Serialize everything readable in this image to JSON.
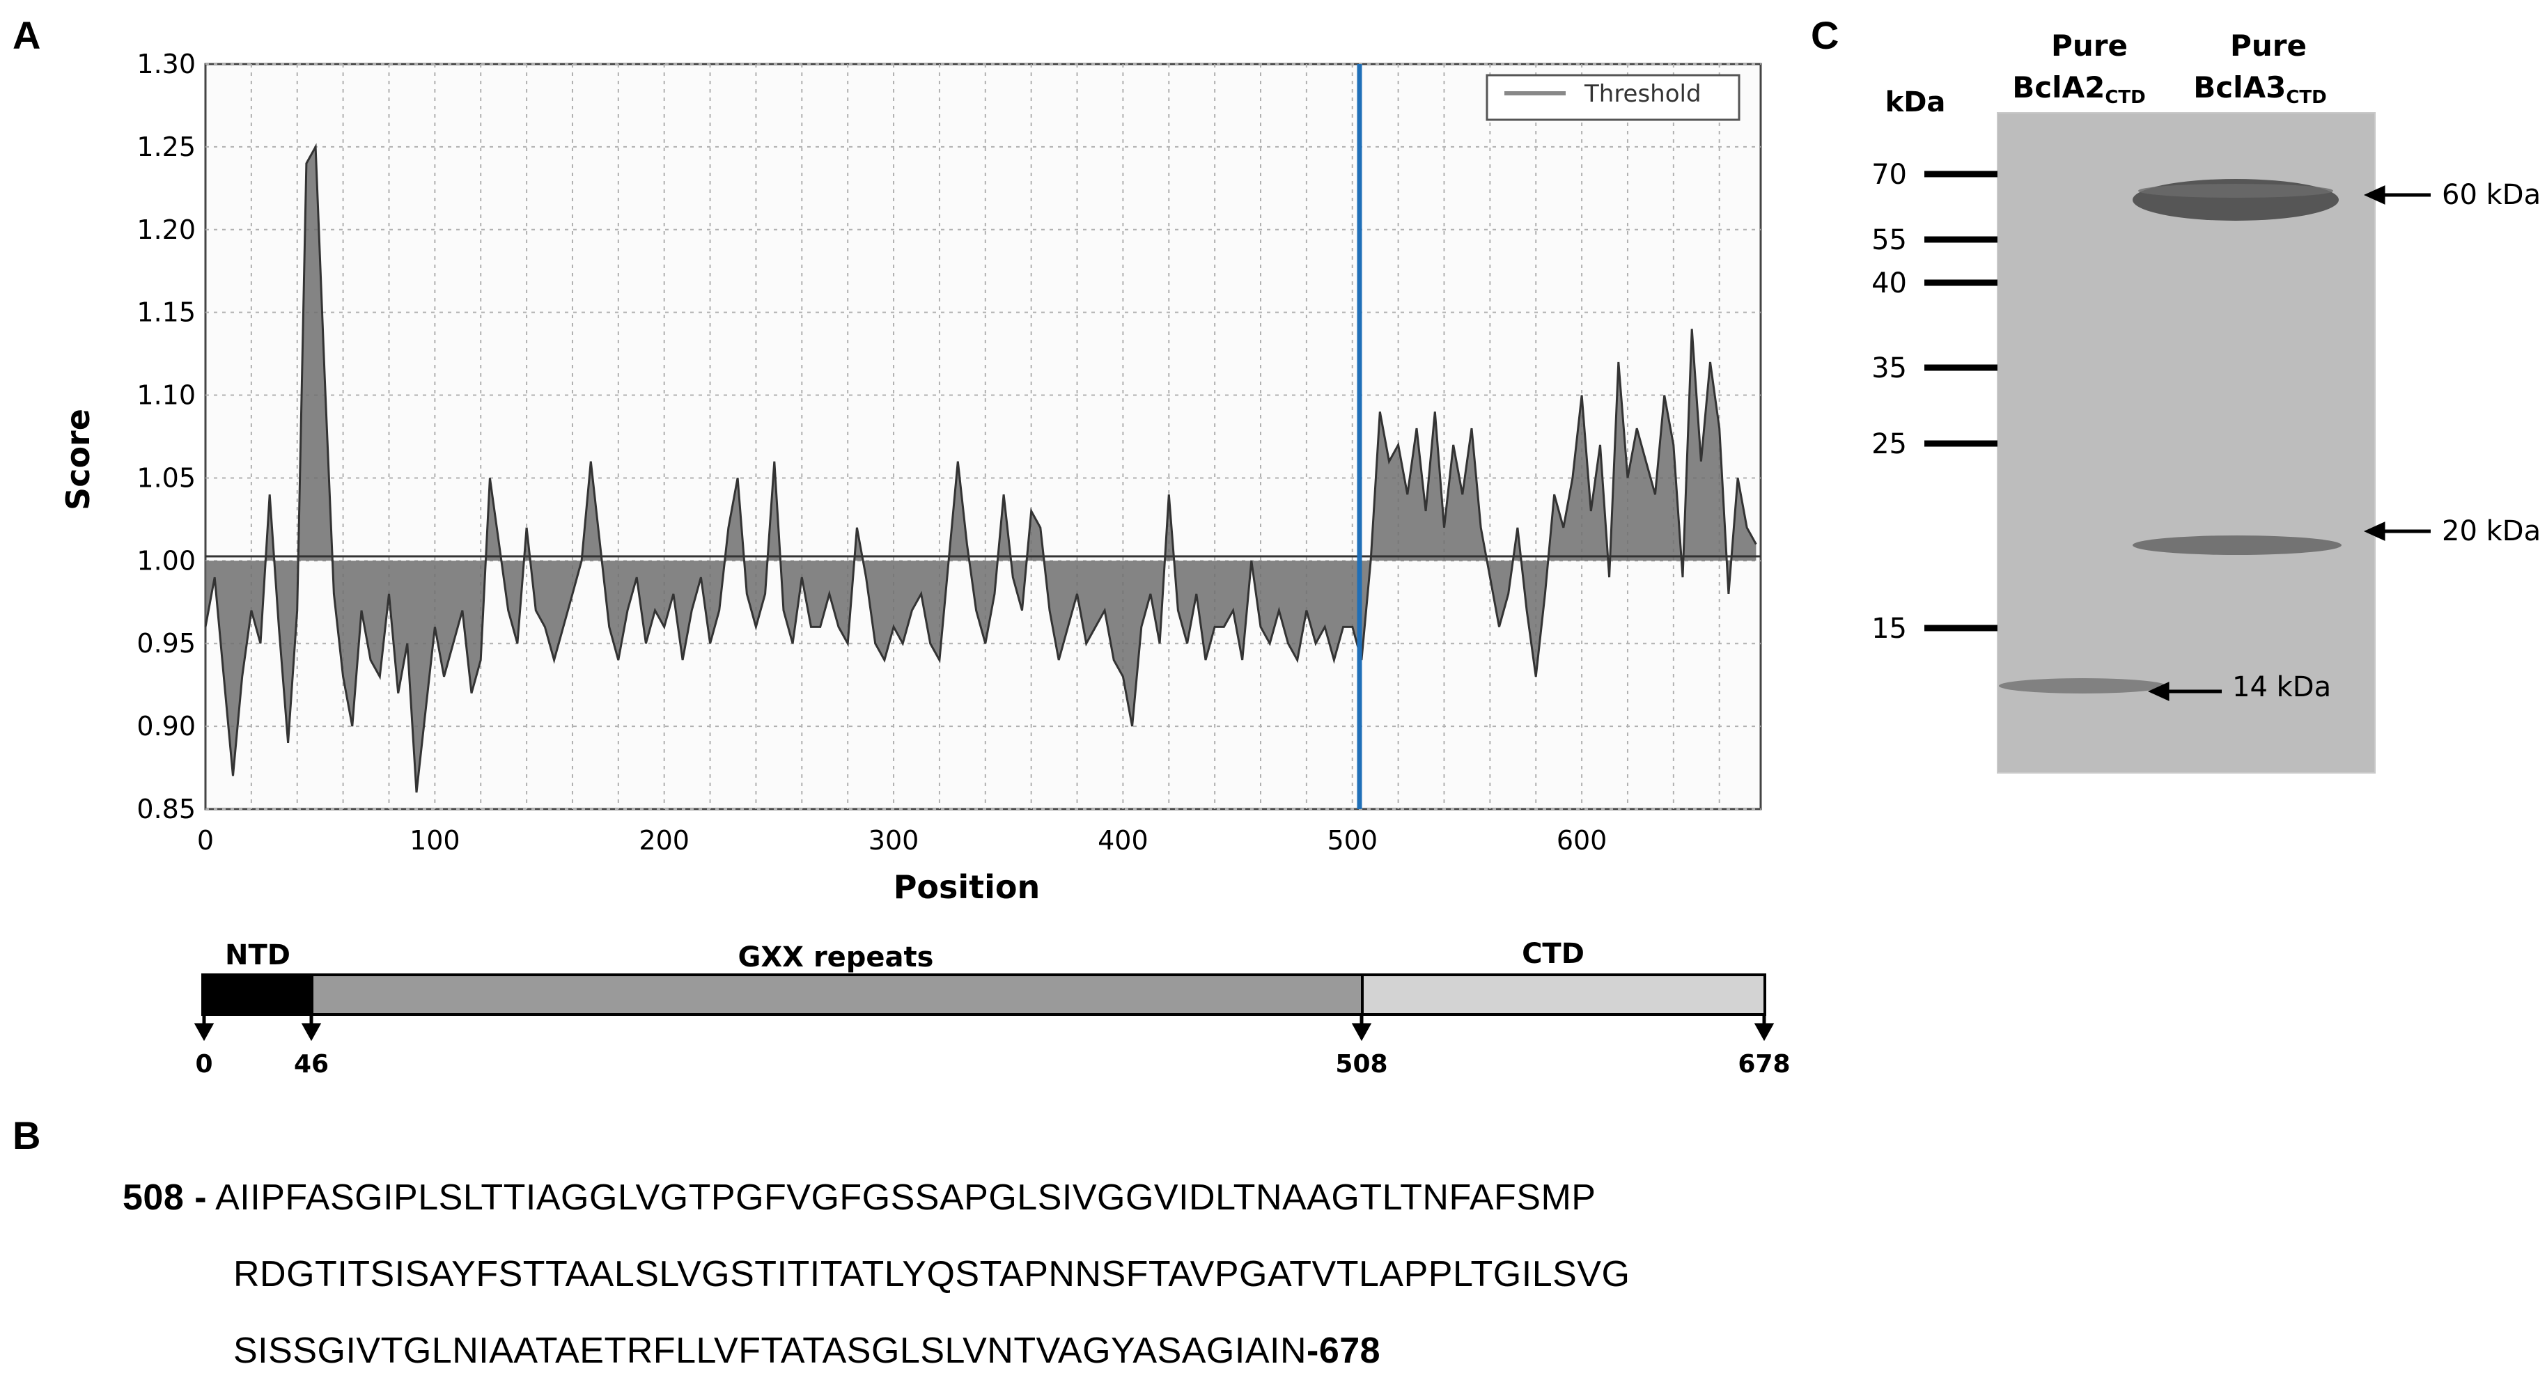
{
  "panels": {
    "a": "A",
    "b": "B",
    "c": "C"
  },
  "chart_data": {
    "type": "area",
    "xlabel": "Position",
    "ylabel": "Score",
    "xlim": [
      0,
      678
    ],
    "ylim": [
      0.85,
      1.3
    ],
    "baseline": 1.0,
    "x_ticks": [
      "0",
      "100",
      "200",
      "300",
      "400",
      "500",
      "600"
    ],
    "y_ticks": [
      "0.85",
      "0.90",
      "0.95",
      "1.00",
      "1.05",
      "1.10",
      "1.15",
      "1.20",
      "1.25",
      "1.30"
    ],
    "legend": "Threshold",
    "marker_line_position": 508,
    "series": [
      {
        "name": "Score",
        "x": [
          0,
          4,
          8,
          12,
          16,
          20,
          24,
          28,
          32,
          36,
          40,
          44,
          48,
          52,
          56,
          60,
          64,
          68,
          72,
          76,
          80,
          84,
          88,
          92,
          96,
          100,
          104,
          108,
          112,
          116,
          120,
          124,
          128,
          132,
          136,
          140,
          144,
          148,
          152,
          156,
          160,
          164,
          168,
          172,
          176,
          180,
          184,
          188,
          192,
          196,
          200,
          204,
          208,
          212,
          216,
          220,
          224,
          228,
          232,
          236,
          240,
          244,
          248,
          252,
          256,
          260,
          264,
          268,
          272,
          276,
          280,
          284,
          288,
          292,
          296,
          300,
          304,
          308,
          312,
          316,
          320,
          324,
          328,
          332,
          336,
          340,
          344,
          348,
          352,
          356,
          360,
          364,
          368,
          372,
          376,
          380,
          384,
          388,
          392,
          396,
          400,
          404,
          408,
          412,
          416,
          420,
          424,
          428,
          432,
          436,
          440,
          444,
          448,
          452,
          456,
          460,
          464,
          468,
          472,
          476,
          480,
          484,
          488,
          492,
          496,
          500,
          504,
          508,
          512,
          516,
          520,
          524,
          528,
          532,
          536,
          540,
          544,
          548,
          552,
          556,
          560,
          564,
          568,
          572,
          576,
          580,
          584,
          588,
          592,
          596,
          600,
          604,
          608,
          612,
          616,
          620,
          624,
          628,
          632,
          636,
          640,
          644,
          648,
          652,
          656,
          660,
          664,
          668,
          672,
          676
        ],
        "values": [
          0.96,
          0.99,
          0.93,
          0.87,
          0.93,
          0.97,
          0.95,
          1.04,
          0.96,
          0.89,
          0.97,
          1.24,
          1.25,
          1.11,
          0.98,
          0.93,
          0.9,
          0.97,
          0.94,
          0.93,
          0.98,
          0.92,
          0.95,
          0.86,
          0.91,
          0.96,
          0.93,
          0.95,
          0.97,
          0.92,
          0.94,
          1.05,
          1.01,
          0.97,
          0.95,
          1.02,
          0.97,
          0.96,
          0.94,
          0.96,
          0.98,
          1.0,
          1.06,
          1.01,
          0.96,
          0.94,
          0.97,
          0.99,
          0.95,
          0.97,
          0.96,
          0.98,
          0.94,
          0.97,
          0.99,
          0.95,
          0.97,
          1.02,
          1.05,
          0.98,
          0.96,
          0.98,
          1.06,
          0.97,
          0.95,
          0.99,
          0.96,
          0.96,
          0.98,
          0.96,
          0.95,
          1.02,
          0.99,
          0.95,
          0.94,
          0.96,
          0.95,
          0.97,
          0.98,
          0.95,
          0.94,
          1.0,
          1.06,
          1.01,
          0.97,
          0.95,
          0.98,
          1.04,
          0.99,
          0.97,
          1.03,
          1.02,
          0.97,
          0.94,
          0.96,
          0.98,
          0.95,
          0.96,
          0.97,
          0.94,
          0.93,
          0.9,
          0.96,
          0.98,
          0.95,
          1.04,
          0.97,
          0.95,
          0.98,
          0.94,
          0.96,
          0.96,
          0.97,
          0.94,
          1.0,
          0.96,
          0.95,
          0.97,
          0.95,
          0.94,
          0.97,
          0.95,
          0.96,
          0.94,
          0.96,
          0.96,
          0.94,
          1.0,
          1.09,
          1.06,
          1.07,
          1.04,
          1.08,
          1.03,
          1.09,
          1.02,
          1.07,
          1.04,
          1.08,
          1.02,
          0.99,
          0.96,
          0.98,
          1.02,
          0.97,
          0.93,
          0.98,
          1.04,
          1.02,
          1.05,
          1.1,
          1.03,
          1.07,
          0.99,
          1.12,
          1.05,
          1.08,
          1.06,
          1.04,
          1.1,
          1.07,
          0.99,
          1.14,
          1.06,
          1.12,
          1.08,
          0.98,
          1.05,
          1.02,
          1.01
        ]
      }
    ]
  },
  "domain_map": {
    "ntd": "NTD",
    "gxx": "GXX repeats",
    "ctd": "CTD",
    "positions": [
      "0",
      "46",
      "508",
      "678"
    ]
  },
  "sequence": {
    "start": "508 -",
    "line1": "AIIPFASGIPLSLTTIAGGLVGTPGFVGFGSSAPGLSIVGGVIDLTNAAGTLTNFAFSMP",
    "line2": "RDGTITSISAYFSTTAALSLVGSTITITATLYQSTAPNNSFTAVPGATVTLAPPLTGILSVG",
    "line3": "SISSGIVTGLNIAATAETRFLLVFTATASGLSLVNTVAGYASAGIAIN",
    "end": "-678"
  },
  "gel": {
    "kda_label": "kDa",
    "lanes": [
      {
        "line1": "Pure",
        "name": "BclA2",
        "sub": "CTD"
      },
      {
        "line1": "Pure",
        "name": "BclA3",
        "sub": "CTD"
      }
    ],
    "ladder": [
      "70",
      "55",
      "40",
      "35",
      "25",
      "15"
    ],
    "ladder_values": [
      70,
      55,
      40,
      35,
      25,
      15
    ],
    "bands": [
      "60 kDa",
      "20 kDa",
      "14 kDa"
    ]
  },
  "colors": {
    "marker_line": "#1f6fb8",
    "ntd": "#000000",
    "gxx": "#9a9a9a",
    "ctd": "#d3d3d3",
    "fill": "#6e6e6e",
    "gel": "#bdbdbd"
  }
}
